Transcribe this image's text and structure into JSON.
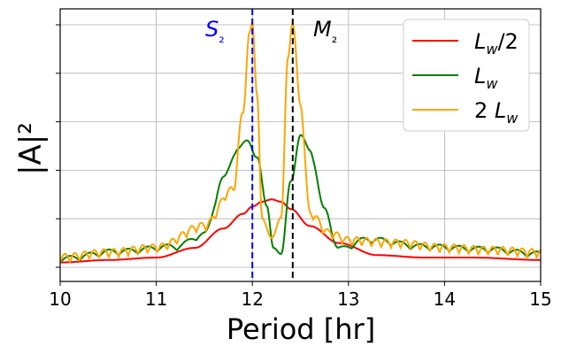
{
  "chart_data": {
    "type": "line",
    "xlabel": "Period [hr]",
    "ylabel": "|A|²",
    "xlim": [
      10,
      15
    ],
    "x_ticks": [
      "10",
      "11",
      "12",
      "13",
      "14",
      "15"
    ],
    "y_tick_labels": "none",
    "grid": true,
    "legend_position": "top-right",
    "reference_lines": [
      {
        "name": "S₂",
        "x": 12.0,
        "color": "#0000ff",
        "style": "dashed"
      },
      {
        "name": "M₂",
        "x": 12.42,
        "color": "#000000",
        "style": "dashed"
      }
    ],
    "series": [
      {
        "name": "L_w/2",
        "color": "#ff0000",
        "x": [
          10.0,
          10.5,
          11.0,
          11.4,
          11.7,
          11.9,
          12.0,
          12.1,
          12.2,
          12.3,
          12.4,
          12.6,
          12.9,
          13.3,
          13.8,
          14.3,
          15.0
        ],
        "y": [
          0.02,
          0.03,
          0.04,
          0.08,
          0.16,
          0.22,
          0.25,
          0.27,
          0.28,
          0.27,
          0.24,
          0.17,
          0.1,
          0.05,
          0.04,
          0.04,
          0.03
        ]
      },
      {
        "name": "L_w",
        "color": "#008000",
        "x": [
          10.0,
          10.6,
          11.2,
          11.5,
          11.7,
          11.85,
          11.95,
          12.05,
          12.15,
          12.22,
          12.3,
          12.4,
          12.5,
          12.6,
          12.75,
          12.9,
          13.2,
          13.8,
          14.4,
          15.0
        ],
        "y": [
          0.02,
          0.05,
          0.07,
          0.12,
          0.35,
          0.48,
          0.51,
          0.45,
          0.25,
          0.08,
          0.05,
          0.35,
          0.53,
          0.47,
          0.22,
          0.06,
          0.1,
          0.07,
          0.06,
          0.04
        ],
        "note_shape": "main lobes with side ripples"
      },
      {
        "name": "2 L_w",
        "color": "#ffa500",
        "x": [
          10.0,
          10.5,
          11.0,
          11.5,
          11.8,
          11.9,
          11.97,
          12.0,
          12.05,
          12.1,
          12.2,
          12.3,
          12.37,
          12.42,
          12.5,
          12.6,
          12.8,
          13.0,
          13.5,
          14.0,
          14.5,
          15.0
        ],
        "y": [
          0.02,
          0.04,
          0.06,
          0.15,
          0.3,
          0.62,
          0.95,
          1.0,
          0.7,
          0.2,
          0.12,
          0.2,
          0.85,
          1.0,
          0.65,
          0.2,
          0.12,
          0.09,
          0.08,
          0.06,
          0.05,
          0.04
        ],
        "note_shape": "two sharp peaks with fine oscillations"
      }
    ]
  }
}
